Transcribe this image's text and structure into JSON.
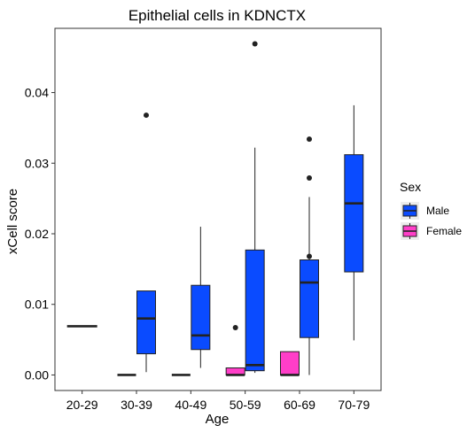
{
  "chart_data": {
    "type": "boxplot",
    "title": "Epithelial cells in KDNCTX",
    "xlabel": "Age",
    "ylabel": "xCell score",
    "ylim": [
      -0.0022,
      0.0491
    ],
    "yticks": [
      0.0,
      0.01,
      0.02,
      0.03,
      0.04
    ],
    "ytick_labels": [
      "0.00",
      "0.01",
      "0.02",
      "0.03",
      "0.04"
    ],
    "categories": [
      "20-29",
      "30-39",
      "40-49",
      "50-59",
      "60-69",
      "70-79"
    ],
    "grid": false,
    "legend": {
      "title": "Sex",
      "position": "right"
    },
    "series": [
      {
        "name": "Male",
        "color": "#0A4BFF",
        "boxes": [
          {
            "category": "20-29",
            "min": 0.0069,
            "q1": 0.0069,
            "median": 0.0069,
            "q3": 0.0069,
            "max": 0.0069,
            "outliers": []
          },
          {
            "category": "30-39",
            "min": 0.0004,
            "q1": 0.003,
            "median": 0.008,
            "q3": 0.0119,
            "max": 0.0119,
            "outliers": [
              0.0368
            ]
          },
          {
            "category": "40-49",
            "min": 0.001,
            "q1": 0.0036,
            "median": 0.0056,
            "q3": 0.0127,
            "max": 0.021,
            "outliers": []
          },
          {
            "category": "50-59",
            "min": 0.0003,
            "q1": 0.0006,
            "median": 0.0014,
            "q3": 0.0177,
            "max": 0.0322,
            "outliers": [
              0.0469
            ]
          },
          {
            "category": "60-69",
            "min": 0.0,
            "q1": 0.0053,
            "median": 0.0131,
            "q3": 0.0163,
            "max": 0.0252,
            "outliers": [
              0.0168,
              0.0279,
              0.0334
            ]
          },
          {
            "category": "70-79",
            "min": 0.0049,
            "q1": 0.0146,
            "median": 0.0243,
            "q3": 0.0312,
            "max": 0.0382,
            "outliers": []
          }
        ]
      },
      {
        "name": "Female",
        "color": "#FF3EC8",
        "boxes": [
          {
            "category": "30-39",
            "min": 0.0,
            "q1": 0.0,
            "median": 0.0,
            "q3": 0.0,
            "max": 0.0,
            "outliers": []
          },
          {
            "category": "40-49",
            "min": 0.0,
            "q1": 0.0,
            "median": 0.0,
            "q3": 0.0,
            "max": 0.0,
            "outliers": []
          },
          {
            "category": "50-59",
            "min": 0.0,
            "q1": 0.0,
            "median": 0.0,
            "q3": 0.001,
            "max": 0.001,
            "outliers": [
              0.0067
            ]
          },
          {
            "category": "60-69",
            "min": 0.0,
            "q1": 0.0,
            "median": 0.0,
            "q3": 0.0033,
            "max": 0.0033,
            "outliers": []
          }
        ]
      }
    ]
  }
}
